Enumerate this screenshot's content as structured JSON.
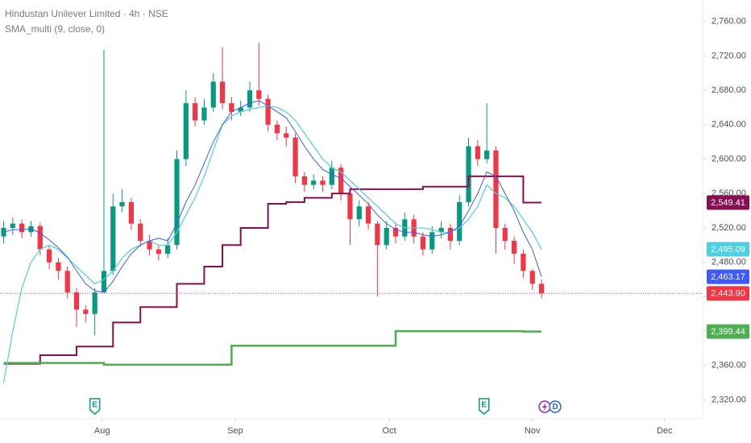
{
  "chart_data": {
    "type": "candlestick",
    "title": "Hindustan Unilever Limited · 4h · NSE",
    "subtitle": "SMA_multi (9, close, 0)",
    "xlim": [
      -0.4,
      76.5
    ],
    "xticks": [
      {
        "value": 10.8,
        "label": "Aug"
      },
      {
        "value": 25.4,
        "label": "Sep"
      },
      {
        "value": 42.3,
        "label": "Oct"
      },
      {
        "value": 58,
        "label": "Nov"
      },
      {
        "value": 72.5,
        "label": "Dec"
      }
    ],
    "ylim": [
      2298,
      2785
    ],
    "yticks": [
      {
        "value": 2320,
        "label": "2,320.00"
      },
      {
        "value": 2360,
        "label": "2,360.00"
      },
      {
        "value": 2400,
        "label": "2,400.00"
      },
      {
        "value": 2440,
        "label": "2,440.00"
      },
      {
        "value": 2480,
        "label": "2,480.00"
      },
      {
        "value": 2520,
        "label": "2,520.00"
      },
      {
        "value": 2560,
        "label": "2,560.00"
      },
      {
        "value": 2600,
        "label": "2,600.00"
      },
      {
        "value": 2640,
        "label": "2,640.00"
      },
      {
        "value": 2680,
        "label": "2,680.00"
      },
      {
        "value": 2720,
        "label": "2,720.00"
      },
      {
        "value": 2760,
        "label": "2,760.00"
      }
    ],
    "up_color": "#089981",
    "down_color": "#f23645",
    "candles": {
      "open": [
        2510,
        2520,
        2525,
        2515,
        2522,
        2495,
        2480,
        2470,
        2445,
        2425,
        2420,
        2445,
        2470,
        2545,
        2550,
        2525,
        2505,
        2495,
        2490,
        2500,
        2600,
        2665,
        2645,
        2660,
        2690,
        2665,
        2655,
        2660,
        2680,
        2670,
        2640,
        2630,
        2625,
        2580,
        2570,
        2575,
        2570,
        2590,
        2560,
        2530,
        2545,
        2525,
        2500,
        2520,
        2510,
        2530,
        2510,
        2495,
        2515,
        2520,
        2505,
        2550,
        2615,
        2600,
        2610,
        2520,
        2505,
        2490,
        2470,
        2455
      ],
      "high": [
        2528,
        2532,
        2530,
        2528,
        2526,
        2500,
        2485,
        2475,
        2450,
        2430,
        2450,
        2727,
        2560,
        2565,
        2555,
        2530,
        2512,
        2500,
        2508,
        2610,
        2680,
        2672,
        2670,
        2700,
        2730,
        2672,
        2668,
        2690,
        2735,
        2675,
        2645,
        2638,
        2630,
        2585,
        2582,
        2580,
        2598,
        2594,
        2565,
        2552,
        2550,
        2528,
        2528,
        2525,
        2538,
        2535,
        2515,
        2522,
        2528,
        2525,
        2558,
        2625,
        2622,
        2665,
        2615,
        2525,
        2510,
        2495,
        2472,
        2460
      ],
      "low": [
        2502,
        2512,
        2508,
        2510,
        2488,
        2472,
        2460,
        2438,
        2405,
        2410,
        2395,
        2460,
        2465,
        2538,
        2518,
        2498,
        2488,
        2482,
        2485,
        2495,
        2592,
        2638,
        2640,
        2655,
        2658,
        2645,
        2650,
        2655,
        2662,
        2632,
        2622,
        2615,
        2572,
        2562,
        2565,
        2562,
        2565,
        2552,
        2500,
        2522,
        2518,
        2440,
        2495,
        2502,
        2505,
        2502,
        2488,
        2490,
        2508,
        2495,
        2500,
        2545,
        2592,
        2595,
        2490,
        2495,
        2478,
        2462,
        2448,
        2438
      ],
      "close": [
        2520,
        2525,
        2515,
        2522,
        2495,
        2480,
        2470,
        2445,
        2425,
        2420,
        2445,
        2470,
        2545,
        2550,
        2525,
        2505,
        2495,
        2490,
        2500,
        2600,
        2665,
        2645,
        2660,
        2690,
        2665,
        2655,
        2660,
        2680,
        2670,
        2640,
        2630,
        2625,
        2580,
        2570,
        2575,
        2570,
        2590,
        2560,
        2530,
        2545,
        2525,
        2500,
        2520,
        2510,
        2530,
        2510,
        2495,
        2515,
        2520,
        2505,
        2550,
        2615,
        2600,
        2610,
        2520,
        2505,
        2490,
        2470,
        2455,
        2443.9
      ],
      "last_value_label": "2,443.90"
    },
    "series": [
      {
        "color": "#880e4f",
        "step": true,
        "width": 2,
        "last_value_label": "2,549.41",
        "values": [
          2362,
          2362,
          2362,
          2362,
          2372,
          2372,
          2372,
          2372,
          2382,
          2382,
          2382,
          2382,
          2410,
          2410,
          2410,
          2428,
          2428,
          2428,
          2428,
          2455,
          2455,
          2455,
          2475,
          2475,
          2500,
          2500,
          2520,
          2520,
          2520,
          2548,
          2548,
          2550,
          2550,
          2555,
          2555,
          2555,
          2560,
          2560,
          2565,
          2565,
          2565,
          2565,
          2565,
          2565,
          2565,
          2565,
          2568,
          2568,
          2568,
          2568,
          2568,
          2580,
          2580,
          2580,
          2580,
          2580,
          2580,
          2549.41,
          2549.41,
          2549.41
        ]
      },
      {
        "color": "#4caf50",
        "step": true,
        "width": 2.5,
        "last_value_label": "2,399.44",
        "values": [
          2363,
          2363,
          2363,
          2363,
          2363,
          2363,
          2363,
          2363,
          2363,
          2363,
          2363,
          2361,
          2361,
          2361,
          2361,
          2361,
          2361,
          2361,
          2361,
          2361,
          2361,
          2361,
          2361,
          2361,
          2361,
          2383,
          2383,
          2383,
          2383,
          2383,
          2383,
          2383,
          2383,
          2383,
          2383,
          2383,
          2383,
          2383,
          2383,
          2383,
          2383,
          2383,
          2383,
          2400,
          2400,
          2400,
          2400,
          2400,
          2400,
          2400,
          2400,
          2400,
          2400,
          2400,
          2400,
          2400,
          2400,
          2399.44,
          2399.44,
          2399.44
        ]
      },
      {
        "color": "#4dd0e1",
        "step": false,
        "width": 1.2,
        "last_value_label": "2,495.09",
        "values": [
          2340,
          2400,
          2450,
          2480,
          2495,
          2500,
          2495,
          2485,
          2475,
          2465,
          2455,
          2460,
          2470,
          2485,
          2495,
          2500,
          2505,
          2500,
          2500,
          2515,
          2535,
          2555,
          2580,
          2610,
          2640,
          2650,
          2655,
          2658,
          2660,
          2662,
          2660,
          2655,
          2645,
          2630,
          2615,
          2600,
          2590,
          2585,
          2575,
          2565,
          2555,
          2545,
          2535,
          2525,
          2520,
          2520,
          2520,
          2518,
          2515,
          2515,
          2520,
          2530,
          2545,
          2570,
          2560,
          2555,
          2545,
          2530,
          2515,
          2495.09
        ]
      },
      {
        "color": "#3d5afe",
        "step": false,
        "width": 1,
        "last_value_label": "2,463.17",
        "values": [
          2515,
          2518,
          2518,
          2519,
          2514,
          2506,
          2497,
          2486,
          2470,
          2455,
          2447,
          2445,
          2458,
          2475,
          2490,
          2500,
          2505,
          2508,
          2505,
          2525,
          2550,
          2570,
          2595,
          2620,
          2640,
          2655,
          2660,
          2665,
          2668,
          2662,
          2655,
          2648,
          2632,
          2615,
          2600,
          2588,
          2582,
          2578,
          2568,
          2558,
          2548,
          2535,
          2525,
          2518,
          2515,
          2515,
          2512,
          2510,
          2512,
          2515,
          2522,
          2540,
          2560,
          2585,
          2580,
          2560,
          2540,
          2515,
          2495,
          2463.17
        ]
      }
    ],
    "events": [
      {
        "x": 10,
        "label": "E"
      },
      {
        "x": 52.7,
        "label": "E"
      },
      {
        "x": 60.5,
        "label": "D"
      }
    ]
  }
}
